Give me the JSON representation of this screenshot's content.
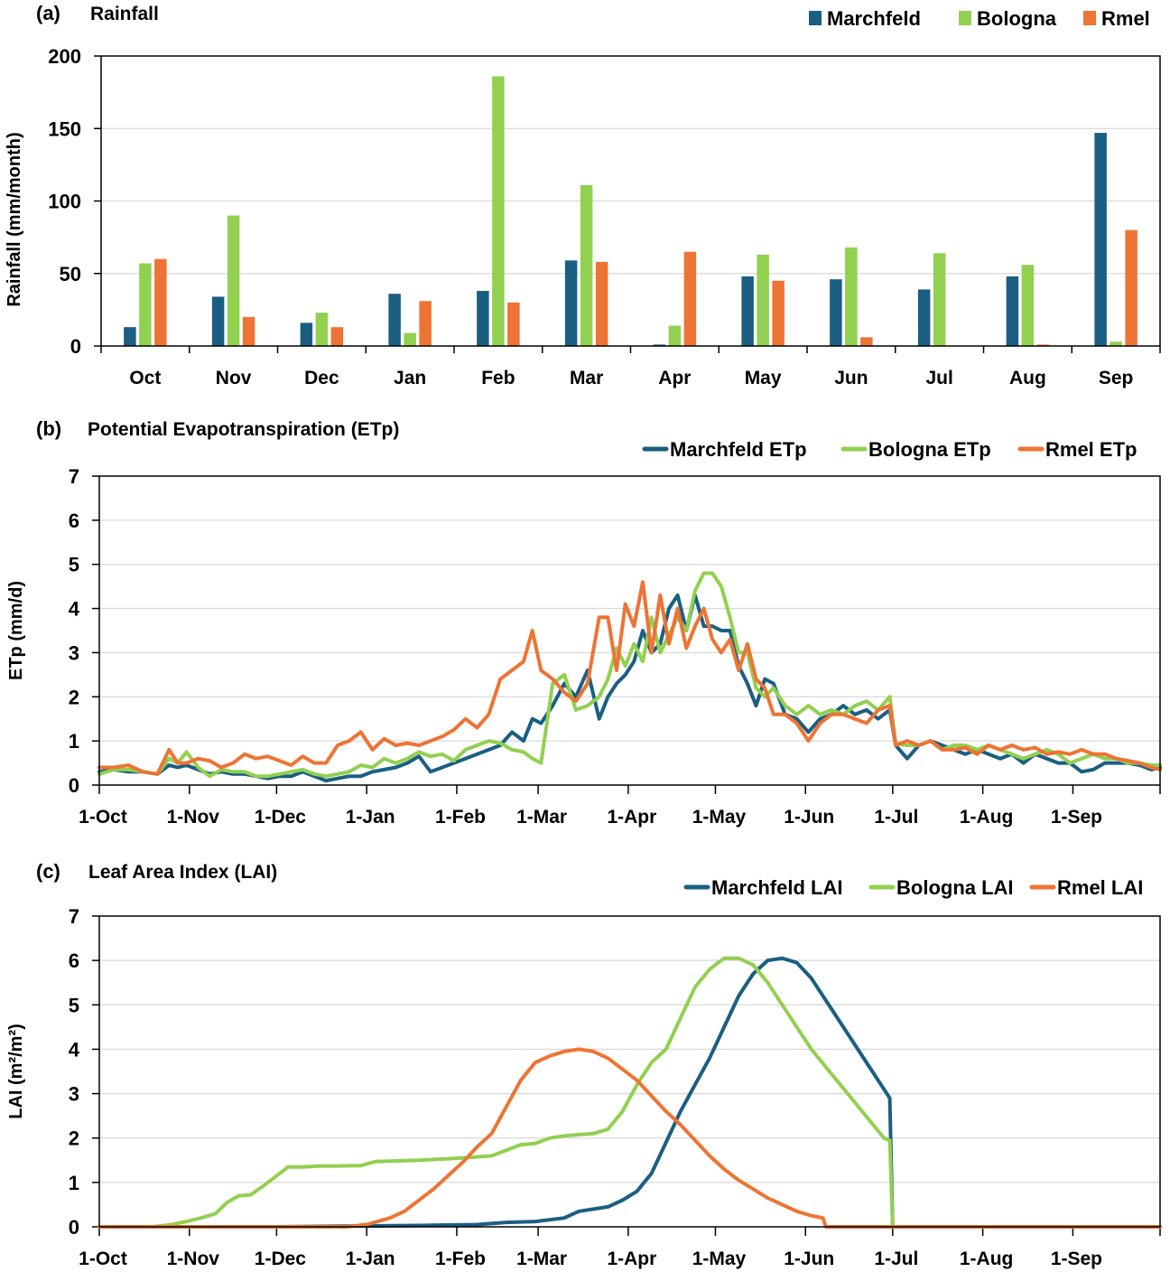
{
  "colors": {
    "Marchfeld": "#1a5f82",
    "Bologna": "#92d050",
    "Rmel": "#ed7434"
  },
  "chart_data": [
    {
      "type": "bar",
      "panel": "(a)",
      "title": "Rainfall",
      "ylabel": "Rainfall (mm/month)",
      "xlabel": "",
      "ylim": [
        0,
        200
      ],
      "yticks": [
        0,
        50,
        100,
        150,
        200
      ],
      "grid": true,
      "legend": "top-right",
      "categories": [
        "Oct",
        "Nov",
        "Dec",
        "Jan",
        "Feb",
        "Mar",
        "Apr",
        "May",
        "Jun",
        "Jul",
        "Aug",
        "Sep"
      ],
      "series": [
        {
          "name": "Marchfeld",
          "values": [
            13,
            34,
            16,
            36,
            38,
            59,
            1,
            48,
            46,
            39,
            48,
            147
          ]
        },
        {
          "name": "Bologna",
          "values": [
            57,
            90,
            23,
            9,
            186,
            111,
            14,
            63,
            68,
            64,
            56,
            3
          ]
        },
        {
          "name": "Rmel",
          "values": [
            60,
            20,
            13,
            31,
            30,
            58,
            65,
            45,
            6,
            0,
            1,
            80
          ]
        }
      ]
    },
    {
      "type": "line",
      "panel": "(b)",
      "title": "Potential Evapotranspiration (ETp)",
      "ylabel": "ETp (mm/d)",
      "xlabel": "",
      "ylim": [
        0,
        7
      ],
      "yticks": [
        0,
        1,
        2,
        3,
        4,
        5,
        6,
        7
      ],
      "xlim_days_from_1_Oct": [
        0,
        365
      ],
      "xticks": [
        {
          "day": 0,
          "label": "1-Oct"
        },
        {
          "day": 31,
          "label": "1-Nov"
        },
        {
          "day": 61,
          "label": "1-Dec"
        },
        {
          "day": 92,
          "label": "1-Jan"
        },
        {
          "day": 123,
          "label": "1-Feb"
        },
        {
          "day": 151,
          "label": "1-Mar"
        },
        {
          "day": 182,
          "label": "1-Apr"
        },
        {
          "day": 212,
          "label": "1-May"
        },
        {
          "day": 243,
          "label": "1-Jun"
        },
        {
          "day": 273,
          "label": "1-Jul"
        },
        {
          "day": 304,
          "label": "1-Aug"
        },
        {
          "day": 335,
          "label": "1-Sep"
        },
        {
          "day": 365,
          "label": ""
        }
      ],
      "grid": true,
      "legend": "top-right",
      "x": [
        0,
        5,
        10,
        15,
        20,
        24,
        27,
        30,
        34,
        38,
        42,
        46,
        50,
        54,
        58,
        62,
        66,
        70,
        74,
        78,
        82,
        86,
        90,
        94,
        98,
        102,
        106,
        110,
        114,
        118,
        122,
        126,
        130,
        134,
        138,
        142,
        146,
        149,
        152,
        156,
        160,
        164,
        168,
        172,
        175,
        178,
        181,
        184,
        187,
        190,
        193,
        196,
        199,
        202,
        205,
        208,
        211,
        214,
        217,
        220,
        223,
        226,
        229,
        232,
        236,
        240,
        244,
        248,
        252,
        256,
        260,
        264,
        268,
        272,
        274,
        278,
        282,
        286,
        290,
        294,
        298,
        302,
        306,
        310,
        314,
        318,
        322,
        326,
        330,
        334,
        338,
        342,
        346,
        350,
        354,
        358,
        362,
        365
      ],
      "series": [
        {
          "name": "Marchfeld ETp",
          "values": [
            0.3,
            0.35,
            0.3,
            0.3,
            0.25,
            0.45,
            0.4,
            0.45,
            0.35,
            0.25,
            0.3,
            0.25,
            0.25,
            0.2,
            0.15,
            0.2,
            0.2,
            0.3,
            0.2,
            0.1,
            0.15,
            0.2,
            0.2,
            0.3,
            0.35,
            0.4,
            0.5,
            0.65,
            0.3,
            0.4,
            0.5,
            0.6,
            0.7,
            0.8,
            0.9,
            1.2,
            1.0,
            1.5,
            1.4,
            1.8,
            2.3,
            2.0,
            2.6,
            1.5,
            2.0,
            2.3,
            2.5,
            2.8,
            3.5,
            3.0,
            3.2,
            4.0,
            4.3,
            3.5,
            4.3,
            3.6,
            3.6,
            3.5,
            3.5,
            2.7,
            2.3,
            1.8,
            2.4,
            2.3,
            1.6,
            1.5,
            1.2,
            1.5,
            1.6,
            1.8,
            1.6,
            1.7,
            1.5,
            1.7,
            0.9,
            0.6,
            0.9,
            1.0,
            0.9,
            0.8,
            0.7,
            0.8,
            0.7,
            0.6,
            0.7,
            0.5,
            0.7,
            0.6,
            0.5,
            0.5,
            0.3,
            0.35,
            0.5,
            0.5,
            0.5,
            0.45,
            0.35,
            0.4
          ]
        },
        {
          "name": "Bologna ETp",
          "values": [
            0.25,
            0.35,
            0.35,
            0.3,
            0.25,
            0.6,
            0.5,
            0.75,
            0.4,
            0.2,
            0.35,
            0.3,
            0.3,
            0.2,
            0.2,
            0.25,
            0.3,
            0.35,
            0.25,
            0.2,
            0.25,
            0.3,
            0.45,
            0.4,
            0.6,
            0.5,
            0.6,
            0.75,
            0.65,
            0.7,
            0.55,
            0.8,
            0.9,
            1.0,
            0.95,
            0.8,
            0.75,
            0.6,
            0.5,
            2.3,
            2.5,
            1.7,
            1.8,
            2.0,
            2.4,
            3.1,
            2.7,
            3.2,
            2.8,
            3.8,
            3.0,
            3.4,
            3.8,
            3.5,
            4.4,
            4.8,
            4.8,
            4.5,
            3.8,
            3.0,
            3.0,
            2.2,
            2.0,
            2.2,
            1.8,
            1.6,
            1.8,
            1.6,
            1.7,
            1.6,
            1.8,
            1.9,
            1.7,
            2.0,
            0.95,
            0.9,
            0.9,
            1.0,
            0.8,
            0.9,
            0.9,
            0.8,
            0.9,
            0.8,
            0.7,
            0.6,
            0.7,
            0.8,
            0.7,
            0.5,
            0.6,
            0.7,
            0.6,
            0.6,
            0.5,
            0.5,
            0.45,
            0.45
          ]
        },
        {
          "name": "Rmel ETp",
          "values": [
            0.4,
            0.4,
            0.45,
            0.3,
            0.25,
            0.8,
            0.5,
            0.5,
            0.6,
            0.55,
            0.4,
            0.5,
            0.7,
            0.6,
            0.65,
            0.55,
            0.45,
            0.65,
            0.5,
            0.5,
            0.9,
            1.0,
            1.2,
            0.8,
            1.05,
            0.9,
            0.95,
            0.9,
            1.0,
            1.1,
            1.25,
            1.5,
            1.3,
            1.6,
            2.4,
            2.6,
            2.8,
            3.5,
            2.6,
            2.4,
            2.1,
            1.9,
            2.3,
            3.8,
            3.8,
            2.6,
            4.1,
            3.6,
            4.6,
            3.0,
            4.3,
            3.2,
            4.0,
            3.1,
            3.6,
            4.0,
            3.3,
            3.0,
            3.3,
            2.6,
            3.2,
            2.4,
            2.2,
            1.6,
            1.6,
            1.4,
            1.0,
            1.4,
            1.6,
            1.6,
            1.5,
            1.4,
            1.7,
            1.8,
            0.9,
            1.0,
            0.9,
            1.0,
            0.8,
            0.8,
            0.85,
            0.7,
            0.9,
            0.8,
            0.9,
            0.8,
            0.85,
            0.7,
            0.75,
            0.7,
            0.8,
            0.7,
            0.7,
            0.6,
            0.55,
            0.5,
            0.4,
            0.35
          ]
        }
      ]
    },
    {
      "type": "line",
      "panel": "(c)",
      "title": "Leaf Area Index (LAI)",
      "ylabel": "LAI (m²/m²)",
      "xlabel": "",
      "ylim": [
        0,
        7
      ],
      "yticks": [
        0,
        1,
        2,
        3,
        4,
        5,
        6,
        7
      ],
      "xlim_days_from_1_Oct": [
        0,
        365
      ],
      "xticks": [
        {
          "day": 0,
          "label": "1-Oct"
        },
        {
          "day": 31,
          "label": "1-Nov"
        },
        {
          "day": 61,
          "label": "1-Dec"
        },
        {
          "day": 92,
          "label": "1-Jan"
        },
        {
          "day": 123,
          "label": "1-Feb"
        },
        {
          "day": 151,
          "label": "1-Mar"
        },
        {
          "day": 182,
          "label": "1-Apr"
        },
        {
          "day": 212,
          "label": "1-May"
        },
        {
          "day": 243,
          "label": "1-Jun"
        },
        {
          "day": 273,
          "label": "1-Jul"
        },
        {
          "day": 304,
          "label": "1-Aug"
        },
        {
          "day": 335,
          "label": "1-Sep"
        },
        {
          "day": 365,
          "label": ""
        }
      ],
      "grid": true,
      "legend": "top-right",
      "series": [
        {
          "name": "Marchfeld LAI",
          "x": [
            0,
            60,
            92,
            110,
            130,
            140,
            150,
            160,
            165,
            175,
            180,
            185,
            190,
            195,
            200,
            205,
            210,
            215,
            220,
            225,
            230,
            235,
            240,
            245,
            250,
            255,
            260,
            265,
            270,
            272,
            273,
            365
          ],
          "values": [
            0,
            0,
            0.02,
            0.03,
            0.05,
            0.1,
            0.12,
            0.2,
            0.35,
            0.45,
            0.6,
            0.8,
            1.2,
            1.9,
            2.6,
            3.2,
            3.8,
            4.5,
            5.2,
            5.7,
            6.0,
            6.05,
            5.95,
            5.6,
            5.1,
            4.6,
            4.1,
            3.6,
            3.1,
            2.9,
            0,
            0
          ]
        },
        {
          "name": "Bologna LAI",
          "x": [
            0,
            18,
            25,
            30,
            35,
            40,
            44,
            48,
            52,
            56,
            60,
            65,
            70,
            75,
            80,
            90,
            95,
            110,
            125,
            135,
            145,
            150,
            155,
            160,
            170,
            175,
            180,
            185,
            190,
            195,
            200,
            205,
            210,
            215,
            220,
            225,
            230,
            235,
            240,
            245,
            250,
            255,
            260,
            265,
            270,
            272,
            273,
            365
          ],
          "values": [
            0,
            0,
            0.05,
            0.12,
            0.2,
            0.3,
            0.55,
            0.7,
            0.72,
            0.9,
            1.1,
            1.35,
            1.35,
            1.37,
            1.37,
            1.38,
            1.47,
            1.5,
            1.55,
            1.6,
            1.85,
            1.88,
            2.0,
            2.05,
            2.1,
            2.2,
            2.6,
            3.2,
            3.7,
            4.0,
            4.7,
            5.4,
            5.8,
            6.05,
            6.05,
            5.9,
            5.5,
            5.0,
            4.5,
            4.0,
            3.6,
            3.2,
            2.8,
            2.4,
            2.0,
            1.95,
            0,
            0
          ]
        },
        {
          "name": "Rmel LAI",
          "x": [
            0,
            85,
            92,
            100,
            105,
            110,
            115,
            120,
            125,
            130,
            135,
            140,
            145,
            150,
            155,
            160,
            165,
            170,
            175,
            180,
            185,
            190,
            195,
            200,
            205,
            210,
            215,
            220,
            225,
            230,
            235,
            240,
            245,
            249,
            250,
            365
          ],
          "values": [
            0,
            0,
            0.05,
            0.2,
            0.35,
            0.6,
            0.85,
            1.15,
            1.45,
            1.8,
            2.1,
            2.7,
            3.3,
            3.7,
            3.85,
            3.95,
            4.0,
            3.95,
            3.8,
            3.55,
            3.3,
            2.95,
            2.6,
            2.3,
            1.95,
            1.6,
            1.3,
            1.05,
            0.85,
            0.65,
            0.5,
            0.35,
            0.25,
            0.2,
            0,
            0
          ]
        }
      ]
    }
  ]
}
